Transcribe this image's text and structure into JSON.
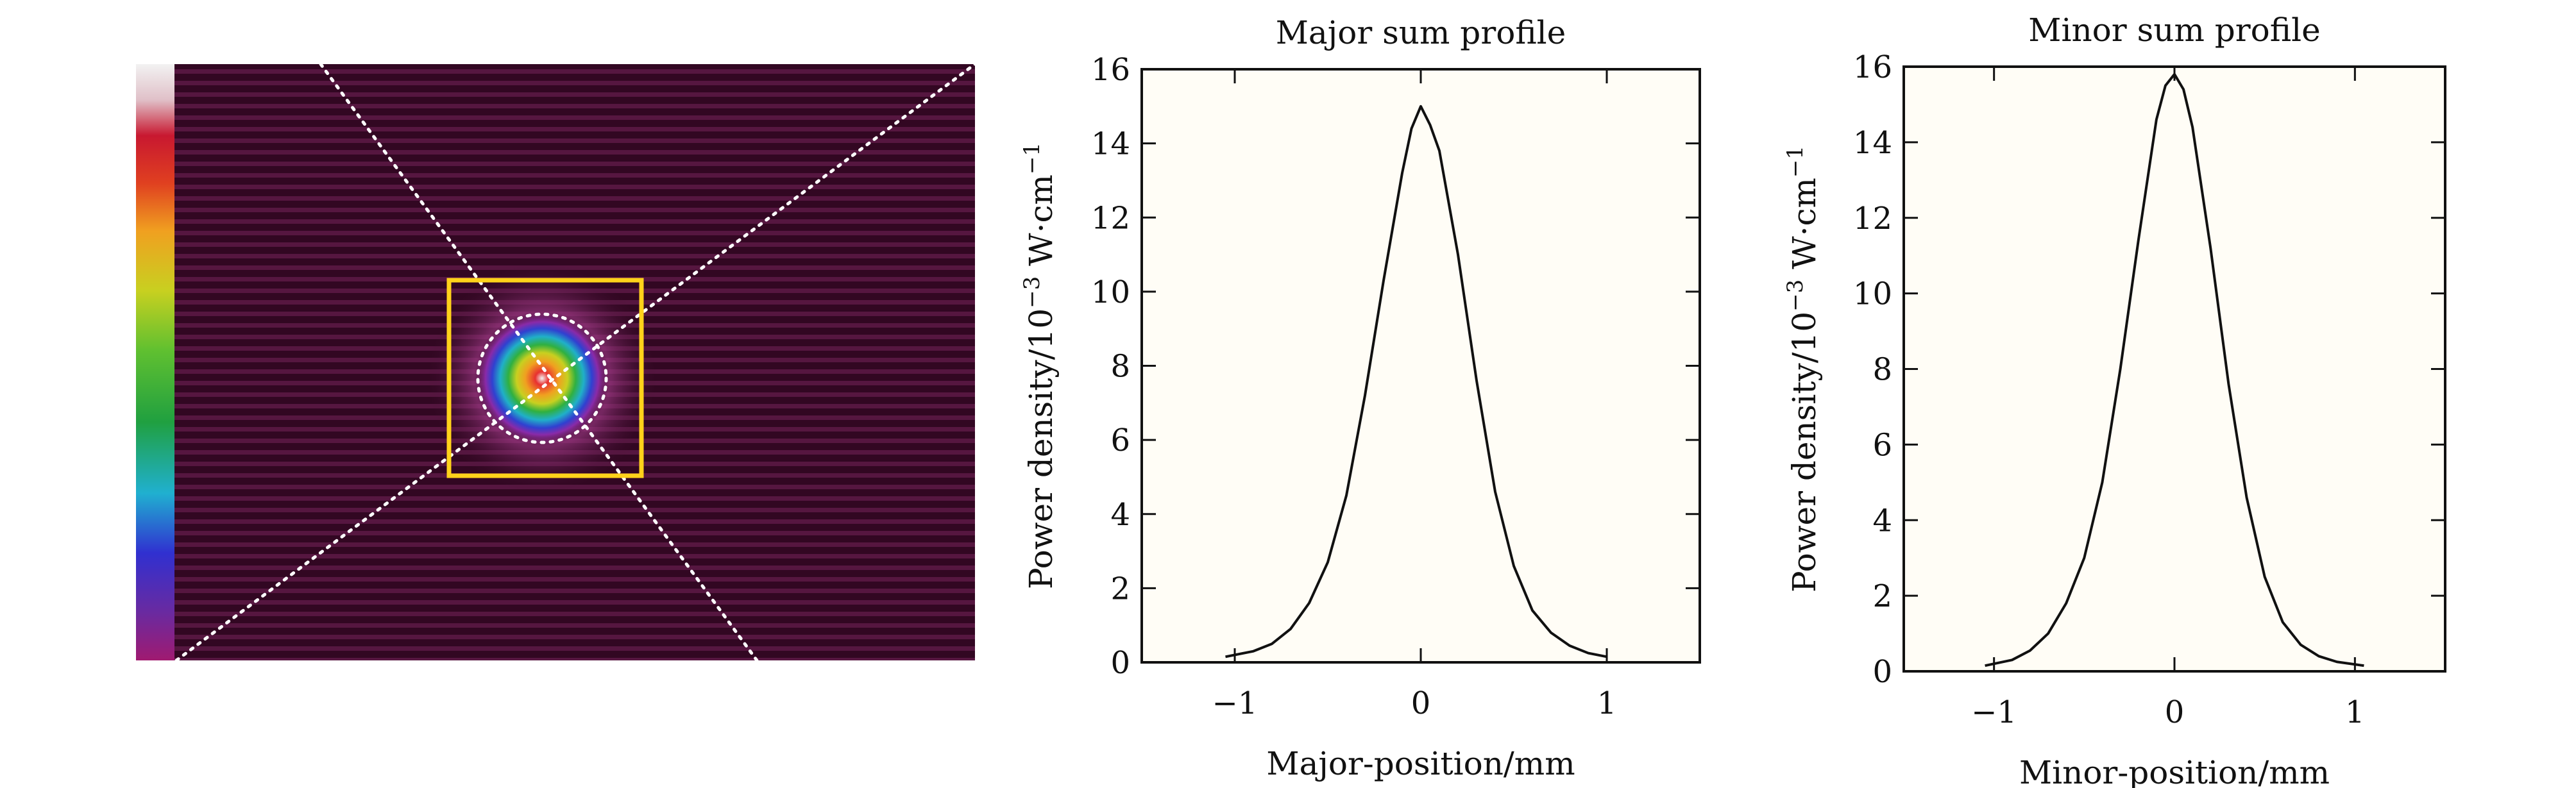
{
  "figure": {
    "panels": [
      "beam-image",
      "major-sum-profile",
      "minor-sum-profile"
    ]
  },
  "colors": {
    "background": "#ffffff",
    "axis": "#111111",
    "curve": "#111111",
    "plot_bg": "#fffdf6",
    "roi_box": "#ffd21a",
    "guide_lines": "#ffffff"
  },
  "beam_image": {
    "description_visible": false,
    "colorbar_colors": [
      "#8a1a6a",
      "#6a2aa0",
      "#3030d0",
      "#20b0d0",
      "#20a040",
      "#60c030",
      "#c8d020",
      "#f0a020",
      "#e04020",
      "#c81830",
      "#e0c0c8",
      "#f2f2f2"
    ]
  },
  "chart_data": [
    {
      "type": "line",
      "title": "Major sum profile",
      "xlabel": "Major-position/mm",
      "ylabel_main": "Power density/10",
      "ylabel_exp": "−3",
      "ylabel_unit": " W·cm",
      "ylabel_unit_exp": "−1",
      "xlim": [
        -1.5,
        1.5
      ],
      "ylim": [
        0,
        16
      ],
      "xticks": [
        -1,
        0,
        1
      ],
      "xtick_labels": [
        "−1",
        "0",
        "1"
      ],
      "yticks": [
        0,
        2,
        4,
        6,
        8,
        10,
        12,
        14,
        16
      ],
      "ytick_labels": [
        "0",
        "2",
        "4",
        "6",
        "8",
        "10",
        "12",
        "14",
        "16"
      ],
      "series": [
        {
          "name": "Major sum profile",
          "x": [
            -1.05,
            -0.9,
            -0.8,
            -0.7,
            -0.6,
            -0.5,
            -0.4,
            -0.3,
            -0.2,
            -0.1,
            -0.05,
            0.0,
            0.05,
            0.1,
            0.2,
            0.3,
            0.4,
            0.5,
            0.6,
            0.7,
            0.8,
            0.9,
            1.0
          ],
          "y": [
            0.15,
            0.3,
            0.5,
            0.9,
            1.6,
            2.7,
            4.5,
            7.2,
            10.3,
            13.2,
            14.4,
            15.0,
            14.5,
            13.8,
            11.0,
            7.6,
            4.6,
            2.6,
            1.4,
            0.8,
            0.45,
            0.25,
            0.15
          ]
        }
      ]
    },
    {
      "type": "line",
      "title": "Minor sum profile",
      "xlabel": "Minor-position/mm",
      "ylabel_main": "Power density/10",
      "ylabel_exp": "−3",
      "ylabel_unit": " W·cm",
      "ylabel_unit_exp": "−1",
      "xlim": [
        -1.5,
        1.5
      ],
      "ylim": [
        0,
        16
      ],
      "xticks": [
        -1,
        0,
        1
      ],
      "xtick_labels": [
        "−1",
        "0",
        "1"
      ],
      "yticks": [
        0,
        2,
        4,
        6,
        8,
        10,
        12,
        14,
        16
      ],
      "ytick_labels": [
        "0",
        "2",
        "4",
        "6",
        "8",
        "10",
        "12",
        "14",
        "16"
      ],
      "series": [
        {
          "name": "Minor sum profile",
          "x": [
            -1.05,
            -0.9,
            -0.8,
            -0.7,
            -0.6,
            -0.5,
            -0.4,
            -0.3,
            -0.2,
            -0.1,
            -0.05,
            0.0,
            0.05,
            0.1,
            0.2,
            0.3,
            0.4,
            0.5,
            0.6,
            0.7,
            0.8,
            0.9,
            1.05
          ],
          "y": [
            0.15,
            0.3,
            0.55,
            1.0,
            1.8,
            3.0,
            5.0,
            8.0,
            11.4,
            14.6,
            15.5,
            15.8,
            15.4,
            14.4,
            11.2,
            7.6,
            4.6,
            2.5,
            1.3,
            0.7,
            0.4,
            0.25,
            0.15
          ]
        }
      ]
    }
  ]
}
